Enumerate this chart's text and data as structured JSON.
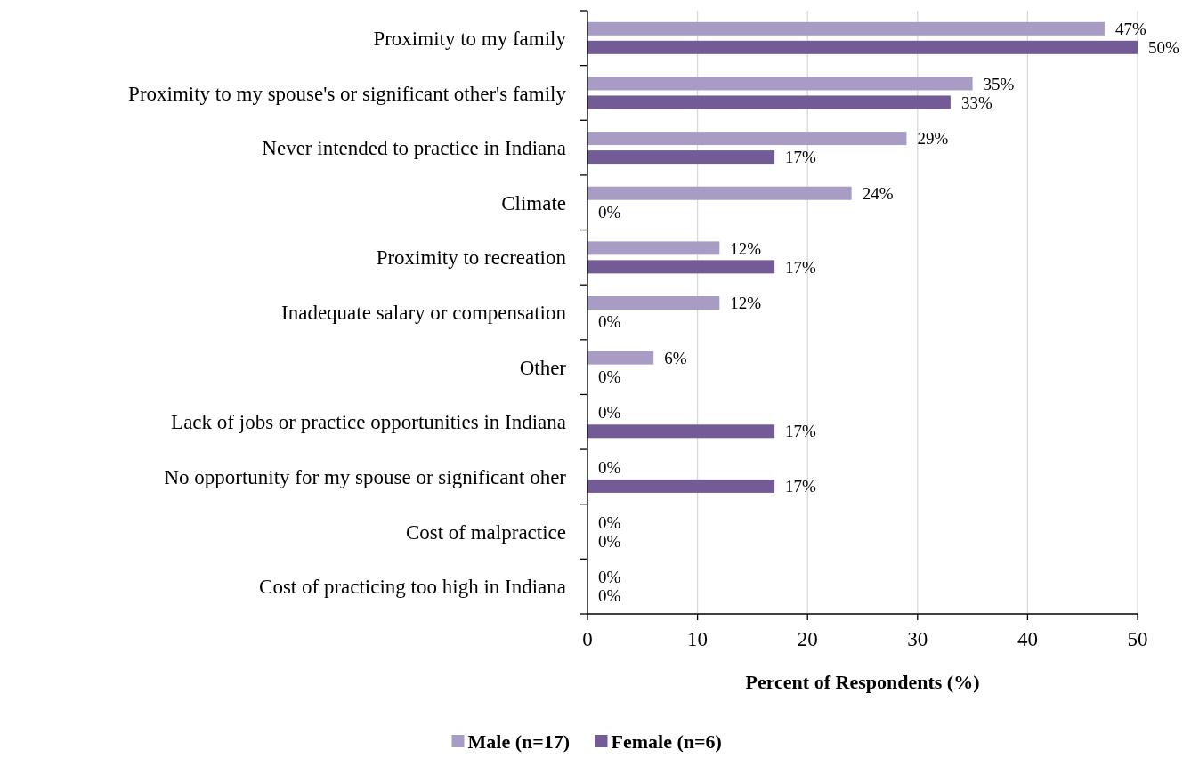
{
  "chart_data": {
    "type": "bar",
    "orientation": "horizontal",
    "xlabel": "Percent of Respondents (%)",
    "categories": [
      "Proximity to my family",
      "Proximity to my spouse's or significant other's family",
      "Never intended to practice in Indiana",
      "Climate",
      "Proximity to recreation",
      "Inadequate salary or compensation",
      "Other",
      "Lack of jobs or practice opportunities in Indiana",
      "No opportunity for my spouse or significant oher",
      "Cost of malpractice",
      "Cost of practicing too high in Indiana"
    ],
    "series": [
      {
        "name": "Male (n=17)",
        "color": "#a99cc4",
        "values": [
          47,
          35,
          29,
          24,
          12,
          12,
          6,
          0,
          0,
          0,
          0
        ],
        "value_labels": [
          "47%",
          "35%",
          "29%",
          "24%",
          "12%",
          "12%",
          "6%",
          "0%",
          "0%",
          "0%",
          "0%"
        ]
      },
      {
        "name": "Female (n=6)",
        "color": "#735b96",
        "values": [
          50,
          33,
          17,
          0,
          17,
          0,
          0,
          17,
          17,
          0,
          0
        ],
        "value_labels": [
          "50%",
          "33%",
          "17%",
          "0%",
          "17%",
          "0%",
          "0%",
          "17%",
          "17%",
          "0%",
          "0%"
        ]
      }
    ],
    "xlim": [
      0,
      50
    ],
    "xticks": [
      0,
      10,
      20,
      30,
      40,
      50
    ],
    "grid": "x",
    "legend": "bottom"
  }
}
